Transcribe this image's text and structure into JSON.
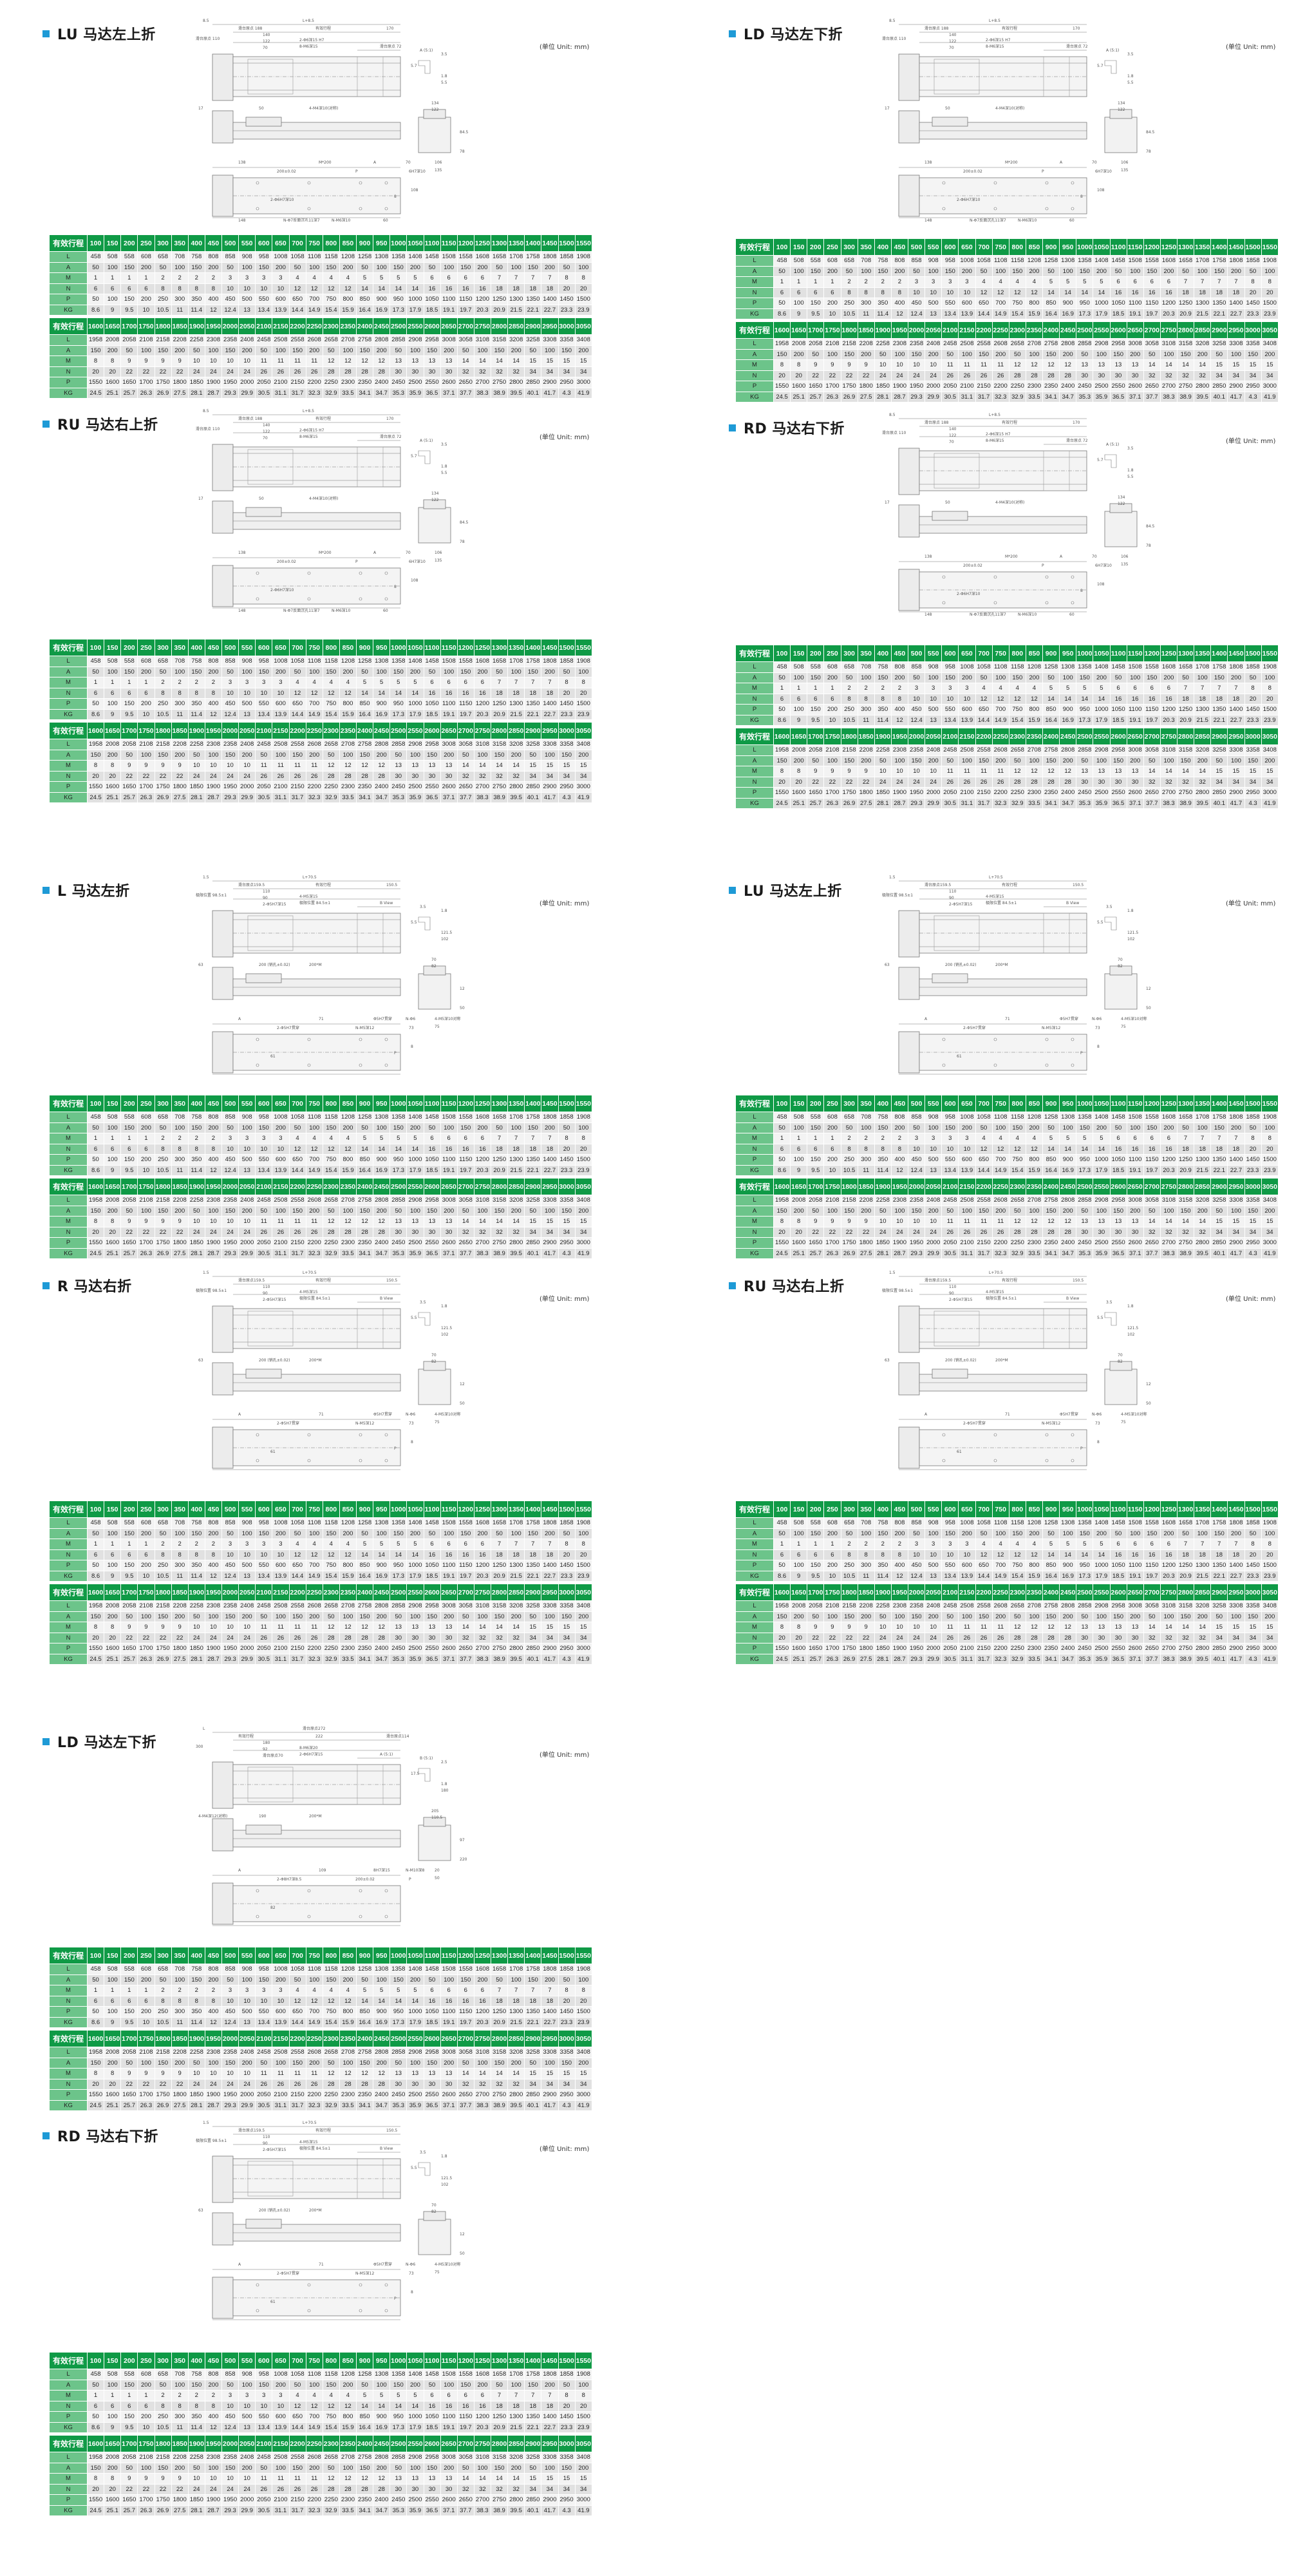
{
  "unit_label": "(单位 Unit: mm)",
  "table": {
    "header_label": "有效行程",
    "row_labels": [
      "L",
      "A",
      "M",
      "N",
      "P",
      "KG"
    ],
    "blocks": [
      {
        "strokes": [
          "100",
          "150",
          "200",
          "250",
          "300",
          "350",
          "400",
          "450",
          "500",
          "550",
          "600",
          "650",
          "700",
          "750",
          "800",
          "850",
          "900",
          "950",
          "1000",
          "1050",
          "1100",
          "1150",
          "1200",
          "1250",
          "1300",
          "1350",
          "1400",
          "1450",
          "1500",
          "1550"
        ],
        "L": [
          "458",
          "508",
          "558",
          "608",
          "658",
          "708",
          "758",
          "808",
          "858",
          "908",
          "958",
          "1008",
          "1058",
          "1108",
          "1158",
          "1208",
          "1258",
          "1308",
          "1358",
          "1408",
          "1458",
          "1508",
          "1558",
          "1608",
          "1658",
          "1708",
          "1758",
          "1808",
          "1858",
          "1908"
        ],
        "A": [
          "50",
          "100",
          "150",
          "200",
          "50",
          "100",
          "150",
          "200",
          "50",
          "100",
          "150",
          "200",
          "50",
          "100",
          "150",
          "200",
          "50",
          "100",
          "150",
          "200",
          "50",
          "100",
          "150",
          "200",
          "50",
          "100",
          "150",
          "200",
          "50",
          "100"
        ],
        "M": [
          "1",
          "1",
          "1",
          "1",
          "2",
          "2",
          "2",
          "2",
          "3",
          "3",
          "3",
          "3",
          "4",
          "4",
          "4",
          "4",
          "5",
          "5",
          "5",
          "5",
          "6",
          "6",
          "6",
          "6",
          "7",
          "7",
          "7",
          "7",
          "8",
          "8"
        ],
        "N": [
          "6",
          "6",
          "6",
          "6",
          "8",
          "8",
          "8",
          "8",
          "10",
          "10",
          "10",
          "10",
          "12",
          "12",
          "12",
          "12",
          "14",
          "14",
          "14",
          "14",
          "16",
          "16",
          "16",
          "16",
          "18",
          "18",
          "18",
          "18",
          "20",
          "20"
        ],
        "P": [
          "50",
          "100",
          "150",
          "200",
          "250",
          "300",
          "350",
          "400",
          "450",
          "500",
          "550",
          "600",
          "650",
          "700",
          "750",
          "800",
          "850",
          "900",
          "950",
          "1000",
          "1050",
          "1100",
          "1150",
          "1200",
          "1250",
          "1300",
          "1350",
          "1400",
          "1450",
          "1500"
        ],
        "KG": [
          "8.6",
          "9",
          "9.5",
          "10",
          "10.5",
          "11",
          "11.4",
          "12",
          "12.4",
          "13",
          "13.4",
          "13.9",
          "14.4",
          "14.9",
          "15.4",
          "15.9",
          "16.4",
          "16.9",
          "17.3",
          "17.9",
          "18.5",
          "19.1",
          "19.7",
          "20.3",
          "20.9",
          "21.5",
          "22.1",
          "22.7",
          "23.3",
          "23.9"
        ]
      },
      {
        "strokes": [
          "1600",
          "1650",
          "1700",
          "1750",
          "1800",
          "1850",
          "1900",
          "1950",
          "2000",
          "2050",
          "2100",
          "2150",
          "2200",
          "2250",
          "2300",
          "2350",
          "2400",
          "2450",
          "2500",
          "2550",
          "2600",
          "2650",
          "2700",
          "2750",
          "2800",
          "2850",
          "2900",
          "2950",
          "3000",
          "3050"
        ],
        "L": [
          "1958",
          "2008",
          "2058",
          "2108",
          "2158",
          "2208",
          "2258",
          "2308",
          "2358",
          "2408",
          "2458",
          "2508",
          "2558",
          "2608",
          "2658",
          "2708",
          "2758",
          "2808",
          "2858",
          "2908",
          "2958",
          "3008",
          "3058",
          "3108",
          "3158",
          "3208",
          "3258",
          "3308",
          "3358",
          "3408"
        ],
        "A": [
          "150",
          "200",
          "50",
          "100",
          "150",
          "200",
          "50",
          "100",
          "150",
          "200",
          "50",
          "100",
          "150",
          "200",
          "50",
          "100",
          "150",
          "200",
          "50",
          "100",
          "150",
          "200",
          "50",
          "100",
          "150",
          "200",
          "50",
          "100",
          "150",
          "200"
        ],
        "M": [
          "8",
          "8",
          "9",
          "9",
          "9",
          "9",
          "10",
          "10",
          "10",
          "10",
          "11",
          "11",
          "11",
          "11",
          "12",
          "12",
          "12",
          "12",
          "13",
          "13",
          "13",
          "13",
          "14",
          "14",
          "14",
          "14",
          "15",
          "15",
          "15",
          "15"
        ],
        "N": [
          "20",
          "20",
          "22",
          "22",
          "22",
          "22",
          "24",
          "24",
          "24",
          "24",
          "26",
          "26",
          "26",
          "26",
          "28",
          "28",
          "28",
          "28",
          "30",
          "30",
          "30",
          "30",
          "32",
          "32",
          "32",
          "32",
          "34",
          "34",
          "34",
          "34"
        ],
        "P": [
          "1550",
          "1600",
          "1650",
          "1700",
          "1750",
          "1800",
          "1850",
          "1900",
          "1950",
          "2000",
          "2050",
          "2100",
          "2150",
          "2200",
          "2250",
          "2300",
          "2350",
          "2400",
          "2450",
          "2500",
          "2550",
          "2600",
          "2650",
          "2700",
          "2750",
          "2800",
          "2850",
          "2900",
          "2950",
          "3000"
        ],
        "KG": [
          "24.5",
          "25.1",
          "25.7",
          "26.3",
          "26.9",
          "27.5",
          "28.1",
          "28.7",
          "29.3",
          "29.9",
          "30.5",
          "31.1",
          "31.7",
          "32.3",
          "32.9",
          "33.5",
          "34.1",
          "34.7",
          "35.3",
          "35.9",
          "36.5",
          "37.1",
          "37.7",
          "38.3",
          "38.9",
          "39.5",
          "40.1",
          "41.7",
          "4.3",
          "41.9"
        ]
      }
    ]
  },
  "drawing_labels": {
    "fold_up_down": [
      "8.5",
      "L+8.5",
      "滑台原点 188",
      "有效行程",
      "170",
      "滑台原点 110",
      "140",
      "122",
      "70",
      "2-Φ6深15 H7",
      "8-M6深15",
      "滑台原点 72",
      "A (5:1)",
      "3.5",
      "5.7",
      "1.8",
      "134",
      "5.5",
      "122",
      "84.5",
      "78",
      "106",
      "135",
      "17",
      "50",
      "4-M4深10(对称)",
      "138",
      "M*200",
      "A",
      "70",
      "200±0.02",
      "P",
      "6H7深10",
      "2-Φ6H7深10",
      "108",
      "8",
      "148",
      "N-Φ7反面沉孔11深7",
      "N-M6深10",
      "60"
    ],
    "fold_side": [
      "1.5",
      "L+70.5",
      "滑台原点159.5",
      "有效行程",
      "150.5",
      "极限位置 98.5±1",
      "110",
      "90",
      "2-Φ5H7深15",
      "4-M5深15",
      "极限位置 84.5±1",
      "B View",
      "3.5",
      "1.8",
      "5.5",
      "121.5",
      "70",
      "102",
      "82",
      "12",
      "50",
      "4-M5深10对称",
      "75",
      "63",
      "200 (销孔±0.02)",
      "200*M",
      "A",
      "71",
      "Φ5H7贯穿",
      "N-Φ6",
      "2-Φ5H7贯穿",
      "N-M5深12",
      "73",
      "61",
      "8",
      "P"
    ],
    "fold_down_long": [
      "L",
      "滑台原点272",
      "有效行程",
      "222",
      "滑台原点114",
      "300",
      "180",
      "92",
      "滑台原点70",
      "8-M6深20",
      "2-Φ6H7深15",
      "A (5:1)",
      "B (5:1)",
      "2.5",
      "17.5",
      "1.8",
      "205",
      "180",
      "110.5",
      "97",
      "220",
      "20",
      "50",
      "4-M4深12(对称)",
      "190",
      "200*M",
      "A",
      "109",
      "8H7深15",
      "N-M10深8",
      "2-Φ8H7深8.5",
      "200±0.02",
      "P",
      "82"
    ]
  },
  "sections": [
    {
      "title": "LU 马达左上折",
      "labels": "fold_up_down"
    },
    {
      "title": "RU 马达右上折",
      "labels": "fold_up_down"
    },
    {
      "title": "L 马达左折",
      "labels": "fold_side"
    },
    {
      "title": "R 马达右折",
      "labels": "fold_side"
    },
    {
      "title": "LD 马达左下折",
      "labels": "fold_down_long"
    },
    {
      "title": "RD 马达右下折",
      "labels": "fold_side"
    },
    {
      "title": "LD 马达左下折",
      "labels": "fold_up_down"
    },
    {
      "title": "RD 马达右下折",
      "labels": "fold_up_down"
    },
    {
      "title": "LU 马达左上折",
      "labels": "fold_side"
    },
    {
      "title": "RU 马达右上折",
      "labels": "fold_side"
    }
  ],
  "colors": {
    "header_green": "#0f9a46",
    "label_green": "#6cc48a",
    "title_marker_blue": "#1e9ad6"
  }
}
